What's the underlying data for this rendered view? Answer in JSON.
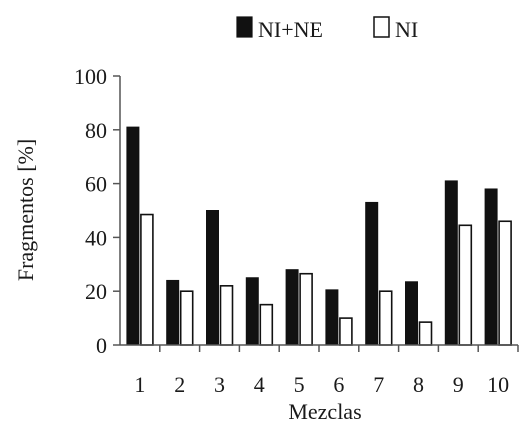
{
  "chart_data": {
    "type": "bar",
    "title": "",
    "xlabel": "Mezclas",
    "ylabel": "Fragmentos [%]",
    "ylim": [
      0,
      100
    ],
    "yticks": [
      "0",
      "20",
      "40",
      "60",
      "80",
      "100"
    ],
    "categories": [
      "1",
      "2",
      "3",
      "4",
      "5",
      "6",
      "7",
      "8",
      "9",
      "10"
    ],
    "series": [
      {
        "name": "NI+NE",
        "color": "#111111",
        "fill": "solid",
        "values": [
          81,
          24,
          50,
          25,
          28,
          20.5,
          53,
          23.5,
          61,
          58
        ]
      },
      {
        "name": "NI",
        "color": "#ffffff",
        "fill": "outline",
        "values": [
          48.5,
          20,
          22,
          15,
          26.5,
          10,
          20,
          8.5,
          44.5,
          46
        ]
      }
    ],
    "legend": "top",
    "grid": false
  }
}
